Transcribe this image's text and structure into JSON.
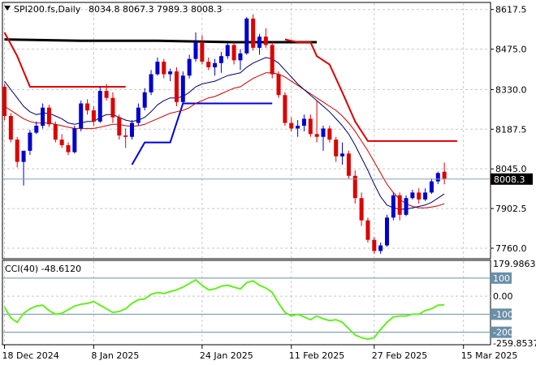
{
  "header": {
    "symbol": "SPI200.fs,Daily",
    "ohlc": "8034.8 8067.3 7989.3 8008.3"
  },
  "price_panel": {
    "price_ticks": [
      "8617.5",
      "8475.0",
      "8330.0",
      "8187.5",
      "8045.0",
      "7902.5",
      "7760.0"
    ],
    "current_price_label": "8008.3"
  },
  "cci_panel": {
    "title": "CCI(40) -48.6120",
    "tick_labels": [
      "179.9863",
      "100",
      "0.00",
      "-100",
      "-200",
      "-259.8537"
    ]
  },
  "x_axis": {
    "date_labels": [
      "18 Dec 2024",
      "8 Jan 2025",
      "24 Jan 2025",
      "11 Feb 2025",
      "27 Feb 2025",
      "15 Mar 2025"
    ]
  },
  "colors": {
    "bull": "#0000cc",
    "bear": "#dd0000",
    "ema_fast": "#000066",
    "ema_slow": "#cc0000",
    "level_red": "#dd0000",
    "level_black": "#000000",
    "level_blue": "#0000dd",
    "cci": "#66ee22",
    "grid": "#c8c8c8",
    "ref_line": "#6a8fa8"
  },
  "chart_data": [
    {
      "type": "candlestick",
      "title": "SPI200.fs,Daily",
      "ylim": [
        7725,
        8640
      ],
      "price_ticks": [
        8617.5,
        8475.0,
        8330.0,
        8187.5,
        8045.0,
        7902.5,
        7760.0
      ],
      "current_price": 8008.3,
      "x_labels": [
        "18 Dec 2024",
        "8 Jan 2025",
        "24 Jan 2025",
        "11 Feb 2025",
        "27 Feb 2025",
        "15 Mar 2025"
      ],
      "x_label_bar_index": [
        0,
        14,
        31,
        45,
        58,
        72
      ],
      "candles": [
        [
          8340,
          8350,
          8220,
          8235
        ],
        [
          8235,
          8245,
          8140,
          8150
        ],
        [
          8150,
          8160,
          8050,
          8070
        ],
        [
          8070,
          8110,
          7985,
          8110
        ],
        [
          8110,
          8185,
          8095,
          8175
        ],
        [
          8175,
          8215,
          8170,
          8200
        ],
        [
          8200,
          8280,
          8190,
          8265
        ],
        [
          8265,
          8275,
          8195,
          8205
        ],
        [
          8205,
          8215,
          8140,
          8150
        ],
        [
          8150,
          8170,
          8120,
          8130
        ],
        [
          8130,
          8140,
          8095,
          8105
        ],
        [
          8105,
          8200,
          8100,
          8190
        ],
        [
          8190,
          8290,
          8180,
          8280
        ],
        [
          8280,
          8295,
          8240,
          8255
        ],
        [
          8255,
          8270,
          8200,
          8215
        ],
        [
          8215,
          8340,
          8210,
          8325
        ],
        [
          8325,
          8350,
          8290,
          8300
        ],
        [
          8300,
          8320,
          8210,
          8230
        ],
        [
          8230,
          8240,
          8150,
          8165
        ],
        [
          8165,
          8190,
          8120,
          8160
        ],
        [
          8160,
          8220,
          8150,
          8210
        ],
        [
          8210,
          8280,
          8200,
          8265
        ],
        [
          8265,
          8335,
          8255,
          8320
        ],
        [
          8320,
          8400,
          8310,
          8385
        ],
        [
          8385,
          8445,
          8380,
          8430
        ],
        [
          8430,
          8440,
          8370,
          8385
        ],
        [
          8385,
          8405,
          8360,
          8395
        ],
        [
          8395,
          8410,
          8270,
          8285
        ],
        [
          8285,
          8395,
          8280,
          8380
        ],
        [
          8380,
          8455,
          8370,
          8440
        ],
        [
          8440,
          8535,
          8430,
          8500
        ],
        [
          8500,
          8525,
          8420,
          8430
        ],
        [
          8430,
          8445,
          8400,
          8410
        ],
        [
          8410,
          8440,
          8380,
          8425
        ],
        [
          8425,
          8465,
          8390,
          8450
        ],
        [
          8450,
          8500,
          8440,
          8490
        ],
        [
          8490,
          8500,
          8420,
          8435
        ],
        [
          8435,
          8475,
          8400,
          8460
        ],
        [
          8460,
          8590,
          8455,
          8585
        ],
        [
          8585,
          8600,
          8470,
          8480
        ],
        [
          8480,
          8530,
          8455,
          8520
        ],
        [
          8520,
          8550,
          8480,
          8490
        ],
        [
          8490,
          8500,
          8370,
          8385
        ],
        [
          8385,
          8395,
          8300,
          8310
        ],
        [
          8310,
          8320,
          8200,
          8210
        ],
        [
          8210,
          8230,
          8180,
          8190
        ],
        [
          8190,
          8220,
          8160,
          8200
        ],
        [
          8200,
          8240,
          8180,
          8225
        ],
        [
          8225,
          8240,
          8160,
          8170
        ],
        [
          8170,
          8290,
          8140,
          8160
        ],
        [
          8160,
          8200,
          8110,
          8190
        ],
        [
          8190,
          8200,
          8140,
          8150
        ],
        [
          8150,
          8160,
          8070,
          8090
        ],
        [
          8090,
          8140,
          8060,
          8100
        ],
        [
          8100,
          8110,
          8010,
          8020
        ],
        [
          8020,
          8040,
          7920,
          7940
        ],
        [
          7940,
          7960,
          7840,
          7860
        ],
        [
          7860,
          7870,
          7780,
          7790
        ],
        [
          7790,
          7800,
          7740,
          7750
        ],
        [
          7750,
          7780,
          7740,
          7770
        ],
        [
          7770,
          7880,
          7765,
          7870
        ],
        [
          7870,
          7960,
          7860,
          7950
        ],
        [
          7950,
          7960,
          7860,
          7880
        ],
        [
          7880,
          7950,
          7875,
          7940
        ],
        [
          7940,
          7970,
          7935,
          7960
        ],
        [
          7960,
          7975,
          7920,
          7935
        ],
        [
          7935,
          7975,
          7930,
          7960
        ],
        [
          7960,
          8010,
          7955,
          8000
        ],
        [
          8000,
          8035,
          7990,
          8030
        ],
        [
          8034.8,
          8067.3,
          7989.3,
          8008.3
        ]
      ],
      "ema_fast": [
        8360,
        8330,
        8300,
        8270,
        8250,
        8240,
        8245,
        8245,
        8235,
        8225,
        8210,
        8205,
        8210,
        8215,
        8215,
        8230,
        8240,
        8240,
        8230,
        8220,
        8215,
        8220,
        8230,
        8250,
        8275,
        8290,
        8300,
        8300,
        8305,
        8320,
        8340,
        8350,
        8355,
        8360,
        8370,
        8380,
        8385,
        8390,
        8410,
        8425,
        8435,
        8445,
        8440,
        8425,
        8400,
        8375,
        8350,
        8330,
        8310,
        8290,
        8270,
        8250,
        8225,
        8200,
        8170,
        8130,
        8085,
        8040,
        7990,
        7945,
        7915,
        7905,
        7900,
        7900,
        7905,
        7910,
        7915,
        7925,
        7940,
        7955
      ],
      "ema_slow": [
        8270,
        8255,
        8240,
        8225,
        8215,
        8210,
        8210,
        8210,
        8205,
        8200,
        8195,
        8190,
        8190,
        8190,
        8190,
        8195,
        8200,
        8205,
        8205,
        8200,
        8198,
        8200,
        8205,
        8215,
        8225,
        8235,
        8245,
        8250,
        8255,
        8265,
        8280,
        8290,
        8300,
        8305,
        8315,
        8325,
        8335,
        8340,
        8355,
        8370,
        8380,
        8390,
        8390,
        8385,
        8375,
        8360,
        8345,
        8330,
        8315,
        8300,
        8285,
        8270,
        8255,
        8235,
        8210,
        8180,
        8145,
        8110,
        8070,
        8030,
        7990,
        7960,
        7935,
        7920,
        7910,
        7905,
        7905,
        7908,
        7912,
        7920
      ],
      "resistance_red": [
        [
          0,
          8535
        ],
        [
          2,
          8450
        ],
        [
          4,
          8340
        ],
        [
          12,
          8340
        ],
        [
          19,
          8340
        ]
      ],
      "resistance_black": [
        [
          0,
          8510
        ],
        [
          12,
          8505
        ],
        [
          24,
          8505
        ],
        [
          36,
          8500
        ],
        [
          49,
          8500
        ]
      ],
      "support_blue": [
        [
          20,
          8060
        ],
        [
          22,
          8140
        ],
        [
          26,
          8140
        ],
        [
          28,
          8280
        ],
        [
          42,
          8280
        ]
      ],
      "stop_red_right": [
        [
          44,
          8510
        ],
        [
          46,
          8500
        ],
        [
          48,
          8500
        ],
        [
          49,
          8450
        ],
        [
          51,
          8420
        ],
        [
          53,
          8320
        ],
        [
          55,
          8215
        ],
        [
          57,
          8145
        ],
        [
          71,
          8145
        ]
      ],
      "bar_count": 70
    },
    {
      "type": "line",
      "title": "CCI(40) -48.6120",
      "ylim": [
        -259.8537,
        179.9863
      ],
      "levels": [
        100,
        0,
        -100,
        -200
      ],
      "values": [
        -60,
        -120,
        -145,
        -95,
        -70,
        -55,
        -50,
        -80,
        -100,
        -95,
        -75,
        -55,
        -45,
        -40,
        -30,
        -50,
        -70,
        -90,
        -85,
        -70,
        -40,
        -20,
        -15,
        10,
        20,
        15,
        25,
        35,
        50,
        70,
        90,
        60,
        35,
        40,
        55,
        60,
        50,
        40,
        75,
        85,
        60,
        45,
        20,
        -40,
        -90,
        -110,
        -100,
        -115,
        -130,
        -110,
        -125,
        -135,
        -130,
        -145,
        -180,
        -215,
        -230,
        -238,
        -230,
        -185,
        -145,
        -115,
        -110,
        -110,
        -100,
        -100,
        -80,
        -70,
        -50,
        -48.612
      ]
    }
  ]
}
